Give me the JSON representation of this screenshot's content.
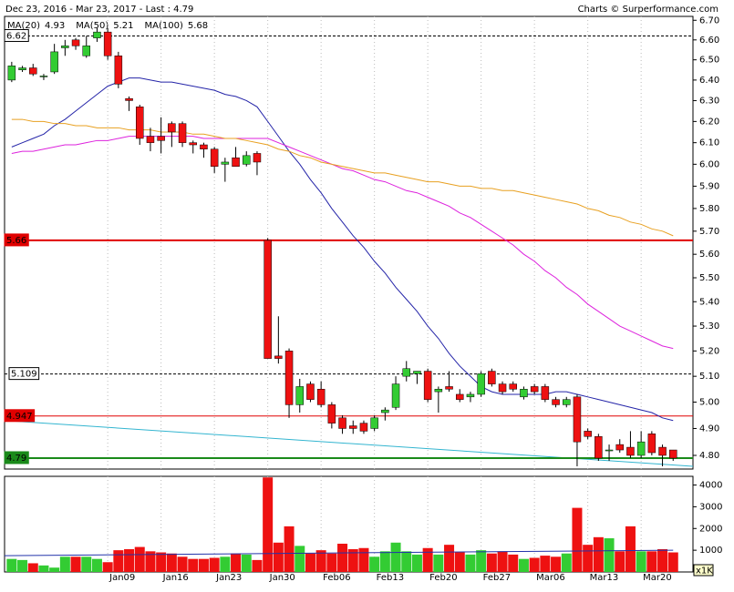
{
  "chart_data": {
    "type": "candlestick",
    "title": "Dec 23, 2016 - Mar 23, 2017 - Last : 4.79",
    "credit": "Charts © Surperformance.com",
    "log_scale": true,
    "grid": true,
    "up_color": "#33cc33",
    "down_color": "#ee1111",
    "categories": [
      null,
      null,
      null,
      null,
      null,
      null,
      null,
      null,
      null,
      "Jan09",
      null,
      null,
      null,
      null,
      "Jan16",
      null,
      null,
      null,
      null,
      "Jan23",
      null,
      null,
      null,
      null,
      "Jan30",
      null,
      null,
      null,
      null,
      "Feb06",
      null,
      null,
      null,
      null,
      "Feb13",
      null,
      null,
      null,
      null,
      "Feb20",
      null,
      null,
      null,
      null,
      "Feb27",
      null,
      null,
      null,
      null,
      "Mar06",
      null,
      null,
      null,
      null,
      "Mar13",
      null,
      null,
      null,
      null,
      "Mar20",
      null,
      null,
      null
    ],
    "open": [
      6.4,
      6.45,
      6.46,
      6.42,
      6.44,
      6.56,
      6.6,
      6.52,
      6.61,
      6.64,
      6.52,
      6.31,
      6.27,
      6.13,
      6.13,
      6.19,
      6.19,
      6.1,
      6.09,
      6.07,
      6.0,
      6.03,
      6.0,
      6.05,
      5.66,
      5.18,
      5.2,
      4.99,
      5.07,
      5.05,
      4.99,
      4.94,
      4.91,
      4.92,
      4.9,
      4.96,
      4.98,
      5.1,
      5.11,
      5.12,
      5.04,
      5.06,
      5.03,
      5.02,
      5.03,
      5.12,
      5.07,
      5.07,
      5.02,
      5.06,
      5.06,
      5.01,
      4.99,
      5.02,
      4.89,
      4.87,
      4.82,
      4.84,
      4.83,
      4.8,
      4.88,
      4.83,
      4.82
    ],
    "high": [
      6.49,
      6.47,
      6.48,
      6.43,
      6.58,
      6.6,
      6.61,
      6.62,
      6.66,
      6.66,
      6.54,
      6.32,
      6.28,
      6.17,
      6.22,
      6.2,
      6.2,
      6.11,
      6.1,
      6.08,
      6.03,
      6.08,
      6.06,
      6.06,
      5.67,
      5.34,
      5.21,
      5.09,
      5.08,
      5.08,
      5.0,
      4.95,
      4.93,
      4.93,
      4.95,
      4.98,
      5.1,
      5.16,
      5.12,
      5.13,
      5.06,
      5.12,
      5.05,
      5.04,
      5.12,
      5.13,
      5.08,
      5.08,
      5.06,
      5.07,
      5.07,
      5.02,
      5.02,
      5.03,
      4.9,
      4.88,
      4.84,
      4.86,
      4.89,
      4.89,
      4.89,
      4.84,
      4.82
    ],
    "low": [
      6.39,
      6.44,
      6.42,
      6.4,
      6.43,
      6.52,
      6.55,
      6.51,
      6.59,
      6.5,
      6.36,
      6.25,
      6.09,
      6.06,
      6.05,
      6.08,
      6.08,
      6.05,
      6.03,
      5.96,
      5.92,
      5.99,
      5.99,
      5.95,
      5.17,
      5.15,
      4.94,
      4.96,
      5.0,
      4.98,
      4.9,
      4.88,
      4.88,
      4.88,
      4.89,
      4.93,
      4.97,
      5.08,
      5.07,
      5.0,
      4.96,
      5.04,
      5.0,
      5.0,
      5.02,
      5.06,
      5.03,
      5.04,
      5.01,
      5.03,
      5.0,
      4.98,
      4.98,
      4.76,
      4.86,
      4.78,
      4.78,
      4.81,
      4.79,
      4.79,
      4.8,
      4.76,
      4.78
    ],
    "close": [
      6.47,
      6.46,
      6.43,
      6.42,
      6.54,
      6.57,
      6.57,
      6.57,
      6.64,
      6.52,
      6.38,
      6.3,
      6.12,
      6.1,
      6.11,
      6.15,
      6.1,
      6.09,
      6.07,
      5.99,
      6.01,
      5.99,
      6.04,
      6.01,
      5.17,
      5.17,
      4.99,
      5.06,
      5.01,
      4.99,
      4.92,
      4.9,
      4.9,
      4.89,
      4.94,
      4.97,
      5.07,
      5.13,
      5.12,
      5.01,
      5.05,
      5.05,
      5.01,
      5.03,
      5.11,
      5.07,
      5.04,
      5.05,
      5.05,
      5.04,
      5.01,
      4.99,
      5.01,
      4.85,
      4.87,
      4.79,
      4.82,
      4.82,
      4.8,
      4.85,
      4.81,
      4.8,
      4.79
    ],
    "volume": [
      600,
      550,
      400,
      300,
      200,
      700,
      700,
      700,
      600,
      450,
      1000,
      1050,
      1150,
      950,
      900,
      850,
      700,
      600,
      600,
      650,
      700,
      850,
      800,
      550,
      4350,
      1350,
      2100,
      1200,
      850,
      1000,
      850,
      1300,
      1050,
      1100,
      700,
      950,
      1350,
      950,
      800,
      1100,
      800,
      1250,
      900,
      800,
      1000,
      850,
      950,
      800,
      600,
      650,
      750,
      700,
      850,
      2950,
      1250,
      1600,
      1550,
      950,
      2100,
      950,
      950,
      1050,
      900
    ],
    "series": [
      {
        "name": "MA(20)",
        "color": "#2424a8",
        "values": [
          6.08,
          6.1,
          6.12,
          6.14,
          6.18,
          6.21,
          6.25,
          6.29,
          6.33,
          6.37,
          6.39,
          6.41,
          6.41,
          6.4,
          6.39,
          6.39,
          6.38,
          6.37,
          6.36,
          6.35,
          6.33,
          6.32,
          6.3,
          6.27,
          6.2,
          6.13,
          6.06,
          6.0,
          5.93,
          5.87,
          5.8,
          5.74,
          5.68,
          5.63,
          5.57,
          5.52,
          5.46,
          5.41,
          5.36,
          5.3,
          5.25,
          5.19,
          5.14,
          5.1,
          5.06,
          5.04,
          5.03,
          5.03,
          5.03,
          5.03,
          5.03,
          5.04,
          5.04,
          5.03,
          5.02,
          5.01,
          5.0,
          4.99,
          4.98,
          4.97,
          4.96,
          4.94,
          4.93
        ]
      },
      {
        "name": "MA(50)",
        "color": "#dd22dd",
        "values": [
          6.05,
          6.06,
          6.06,
          6.07,
          6.08,
          6.09,
          6.09,
          6.1,
          6.11,
          6.11,
          6.12,
          6.13,
          6.13,
          6.13,
          6.13,
          6.13,
          6.13,
          6.13,
          6.12,
          6.12,
          6.12,
          6.12,
          6.12,
          6.12,
          6.12,
          6.1,
          6.08,
          6.06,
          6.04,
          6.02,
          6.0,
          5.98,
          5.97,
          5.95,
          5.93,
          5.92,
          5.9,
          5.88,
          5.87,
          5.85,
          5.83,
          5.81,
          5.78,
          5.76,
          5.73,
          5.7,
          5.67,
          5.64,
          5.6,
          5.57,
          5.53,
          5.5,
          5.46,
          5.43,
          5.39,
          5.36,
          5.33,
          5.3,
          5.28,
          5.26,
          5.24,
          5.22,
          5.21
        ]
      },
      {
        "name": "MA(100)",
        "color": "#e8a020",
        "values": [
          6.21,
          6.21,
          6.2,
          6.2,
          6.19,
          6.19,
          6.18,
          6.18,
          6.17,
          6.17,
          6.17,
          6.16,
          6.16,
          6.16,
          6.15,
          6.15,
          6.15,
          6.14,
          6.14,
          6.13,
          6.12,
          6.12,
          6.11,
          6.1,
          6.09,
          6.07,
          6.06,
          6.04,
          6.03,
          6.01,
          6.0,
          5.99,
          5.98,
          5.97,
          5.96,
          5.96,
          5.95,
          5.94,
          5.93,
          5.92,
          5.92,
          5.91,
          5.9,
          5.9,
          5.89,
          5.89,
          5.88,
          5.88,
          5.87,
          5.86,
          5.85,
          5.84,
          5.83,
          5.82,
          5.8,
          5.79,
          5.77,
          5.76,
          5.74,
          5.73,
          5.71,
          5.7,
          5.68
        ]
      }
    ],
    "levels": [
      {
        "value": 6.62,
        "color": "#000000",
        "style": "dashed"
      },
      {
        "value": 5.66,
        "color": "#e00000",
        "style": "bold"
      },
      {
        "value": 5.109,
        "color": "#000000",
        "style": "dashed"
      },
      {
        "value": 4.947,
        "color": "#e00000",
        "style": "solid"
      },
      {
        "value": 4.79,
        "color": "#1a8a1a",
        "style": "bold"
      }
    ],
    "trendline": {
      "color": "#33b5d0",
      "values": [
        4.93,
        4.76
      ]
    },
    "volume_average": {
      "color": "#2233aa",
      "values": [
        750,
        1000
      ]
    },
    "ylim": [
      4.75,
      6.72
    ],
    "yticks": [
      {
        "value": 4.8,
        "label": "4.80"
      },
      {
        "value": 4.9,
        "label": "4.90"
      },
      {
        "value": 5.0,
        "label": "5.00"
      },
      {
        "value": 5.1,
        "label": "5.10"
      },
      {
        "value": 5.2,
        "label": "5.20"
      },
      {
        "value": 5.3,
        "label": "5.30"
      },
      {
        "value": 5.4,
        "label": "5.40"
      },
      {
        "value": 5.5,
        "label": "5.50"
      },
      {
        "value": 5.6,
        "label": "5.60"
      },
      {
        "value": 5.7,
        "label": "5.70"
      },
      {
        "value": 5.8,
        "label": "5.80"
      },
      {
        "value": 5.9,
        "label": "5.90"
      },
      {
        "value": 6.0,
        "label": "6.00"
      },
      {
        "value": 6.1,
        "label": "6.10"
      },
      {
        "value": 6.2,
        "label": "6.20"
      },
      {
        "value": 6.3,
        "label": "6.30"
      },
      {
        "value": 6.4,
        "label": "6.40"
      },
      {
        "value": 6.5,
        "label": "6.50"
      },
      {
        "value": 6.6,
        "label": "6.60"
      },
      {
        "value": 6.7,
        "label": "6.70"
      }
    ],
    "volume_ylim": [
      0,
      4400
    ],
    "volume_yticks": [
      1000,
      2000,
      3000,
      4000
    ],
    "volume_unit": "x1K"
  }
}
